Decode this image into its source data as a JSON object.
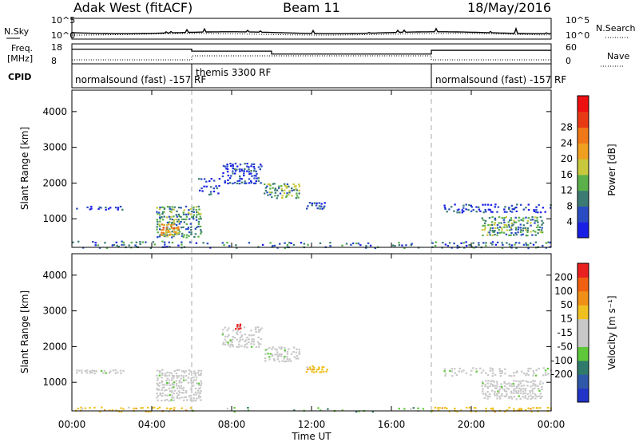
{
  "header": {
    "site": "Adak West (fitACF)",
    "beam": "Beam 11",
    "date": "18/May/2016"
  },
  "noise_panel": {
    "left_label": "N.Sky",
    "right_label": "N.Search",
    "left_ticks": [
      "10^5",
      "10^0"
    ],
    "right_ticks": [
      "10^5",
      "10^0"
    ]
  },
  "freq_panel": {
    "left_label_line1": "Freq.",
    "left_label_line2": "[MHz]",
    "right_label": "Nave",
    "left_ticks": [
      {
        "v": 18,
        "t": "18"
      },
      {
        "v": 8,
        "t": "8"
      }
    ],
    "right_ticks": [
      {
        "v": 60,
        "t": "60"
      },
      {
        "v": 0,
        "t": "0"
      }
    ]
  },
  "cpid_panel": {
    "label": "CPID",
    "segments": [
      {
        "text": "normalsound (fast) -157 RF",
        "start_hour": 0,
        "end_hour": 6
      },
      {
        "text": "themis 3300 RF",
        "start_hour": 6,
        "end_hour": 18
      },
      {
        "text": "normalsound (fast) -157 RF",
        "start_hour": 18,
        "end_hour": 24
      }
    ]
  },
  "colorbars": {
    "power": {
      "label": "Power [dB]",
      "ticks": [
        "4",
        "8",
        "12",
        "16",
        "20",
        "24",
        "28"
      ],
      "colors": [
        "#1a1fe6",
        "#2a4cc2",
        "#3b7b73",
        "#5bb04a",
        "#c8c83c",
        "#f0a020",
        "#f07818",
        "#e83a14",
        "#ee1010"
      ]
    },
    "velocity": {
      "label": "Velocity [m s⁻¹]",
      "ticks": [
        "200",
        "100",
        "50",
        "15",
        "-15",
        "-50",
        "-100",
        "-200"
      ],
      "colors": [
        "#2233c8",
        "#2f58a8",
        "#2f7a6a",
        "#5fc83a",
        "#c8c8c8",
        "#c8c8c8",
        "#f0c020",
        "#f09018",
        "#f06010",
        "#e82020"
      ]
    }
  },
  "chart_data": [
    {
      "type": "heatmap",
      "name": "power",
      "title": "",
      "ylabel": "Slant Range [km]",
      "ylim": [
        200,
        4600
      ],
      "yticks": [
        1000,
        2000,
        3000,
        4000
      ],
      "regions": [
        {
          "x0": 0.2,
          "x1": 2.6,
          "y0": 1270,
          "y1": 1390,
          "level": 1,
          "density": 0.55
        },
        {
          "x0": 0.0,
          "x1": 6.0,
          "y0": 200,
          "y1": 420,
          "level": 2,
          "density": 0.35
        },
        {
          "x0": 4.2,
          "x1": 6.5,
          "y0": 500,
          "y1": 1400,
          "level": 3,
          "density": 0.7
        },
        {
          "x0": 4.4,
          "x1": 5.4,
          "y0": 550,
          "y1": 900,
          "level": 6,
          "density": 0.8
        },
        {
          "x0": 6.3,
          "x1": 7.4,
          "y0": 1700,
          "y1": 2200,
          "level": 1,
          "density": 0.35
        },
        {
          "x0": 7.5,
          "x1": 9.5,
          "y0": 2000,
          "y1": 2600,
          "level": 1,
          "density": 0.55
        },
        {
          "x0": 9.6,
          "x1": 11.4,
          "y0": 1600,
          "y1": 2050,
          "level": 3,
          "density": 0.7
        },
        {
          "x0": 11.7,
          "x1": 12.8,
          "y0": 1300,
          "y1": 1500,
          "level": 1,
          "density": 0.75
        },
        {
          "x0": 6.0,
          "x1": 18.0,
          "y0": 200,
          "y1": 380,
          "level": 2,
          "density": 0.2
        },
        {
          "x0": 18.6,
          "x1": 24.0,
          "y0": 1200,
          "y1": 1450,
          "level": 1,
          "density": 0.35
        },
        {
          "x0": 20.5,
          "x1": 23.6,
          "y0": 550,
          "y1": 1100,
          "level": 3,
          "density": 0.7
        },
        {
          "x0": 18.0,
          "x1": 24.0,
          "y0": 200,
          "y1": 400,
          "level": 2,
          "density": 0.35
        }
      ]
    },
    {
      "type": "heatmap",
      "name": "velocity",
      "title": "",
      "xlabel": "Time UT",
      "ylabel": "Slant Range [km]",
      "xlim": [
        0,
        24
      ],
      "xticks": [
        "00:00",
        "04:00",
        "08:00",
        "12:00",
        "16:00",
        "20:00",
        "00:00"
      ],
      "ylim": [
        200,
        4600
      ],
      "yticks": [
        1000,
        2000,
        3000,
        4000
      ],
      "regions": [
        {
          "x0": 0.2,
          "x1": 2.6,
          "y0": 1270,
          "y1": 1390,
          "level": 4,
          "density": 0.6
        },
        {
          "x0": 0.0,
          "x1": 6.0,
          "y0": 200,
          "y1": 350,
          "level": 6,
          "density": 0.45
        },
        {
          "x0": 4.2,
          "x1": 6.5,
          "y0": 500,
          "y1": 1400,
          "level": 4,
          "density": 0.75
        },
        {
          "x0": 7.5,
          "x1": 9.5,
          "y0": 2000,
          "y1": 2600,
          "level": 4,
          "density": 0.55
        },
        {
          "x0": 8.1,
          "x1": 8.5,
          "y0": 2500,
          "y1": 2700,
          "level": 9,
          "density": 0.8
        },
        {
          "x0": 9.6,
          "x1": 11.4,
          "y0": 1600,
          "y1": 2050,
          "level": 4,
          "density": 0.6
        },
        {
          "x0": 11.7,
          "x1": 12.8,
          "y0": 1300,
          "y1": 1500,
          "level": 6,
          "density": 0.8
        },
        {
          "x0": 6.0,
          "x1": 18.0,
          "y0": 200,
          "y1": 350,
          "level": 3,
          "density": 0.15
        },
        {
          "x0": 18.6,
          "x1": 24.0,
          "y0": 1200,
          "y1": 1450,
          "level": 4,
          "density": 0.35
        },
        {
          "x0": 20.5,
          "x1": 23.6,
          "y0": 550,
          "y1": 1100,
          "level": 4,
          "density": 0.75
        },
        {
          "x0": 18.0,
          "x1": 24.0,
          "y0": 200,
          "y1": 350,
          "level": 6,
          "density": 0.4
        }
      ]
    }
  ]
}
